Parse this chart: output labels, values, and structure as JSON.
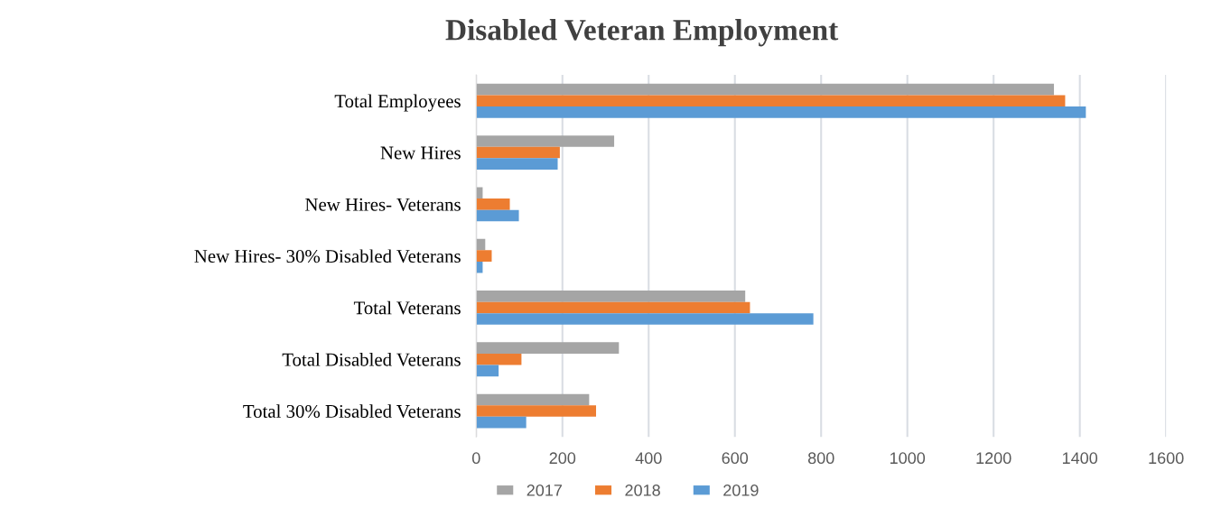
{
  "chart_data": {
    "type": "bar",
    "orientation": "horizontal",
    "title": "Disabled Veteran Employment",
    "categories": [
      "Total Employees",
      "New Hires",
      "New Hires- Veterans",
      "New Hires- 30% Disabled Veterans",
      "Total Veterans",
      "Total Disabled Veterans",
      "Total 30% Disabled Veterans"
    ],
    "series": [
      {
        "name": "2017",
        "color": "#a5a5a5",
        "values": [
          1340,
          320,
          15,
          21,
          624,
          331,
          262
        ]
      },
      {
        "name": "2018",
        "color": "#ed7d31",
        "values": [
          1366,
          194,
          78,
          36,
          635,
          105,
          278
        ]
      },
      {
        "name": "2019",
        "color": "#5b9bd5",
        "values": [
          1414,
          189,
          99,
          15,
          782,
          52,
          116
        ]
      }
    ],
    "xlim": [
      0,
      1600
    ],
    "xticks": [
      0,
      200,
      400,
      600,
      800,
      1000,
      1200,
      1400,
      1600
    ],
    "grid": "x",
    "legend": "bottom"
  }
}
